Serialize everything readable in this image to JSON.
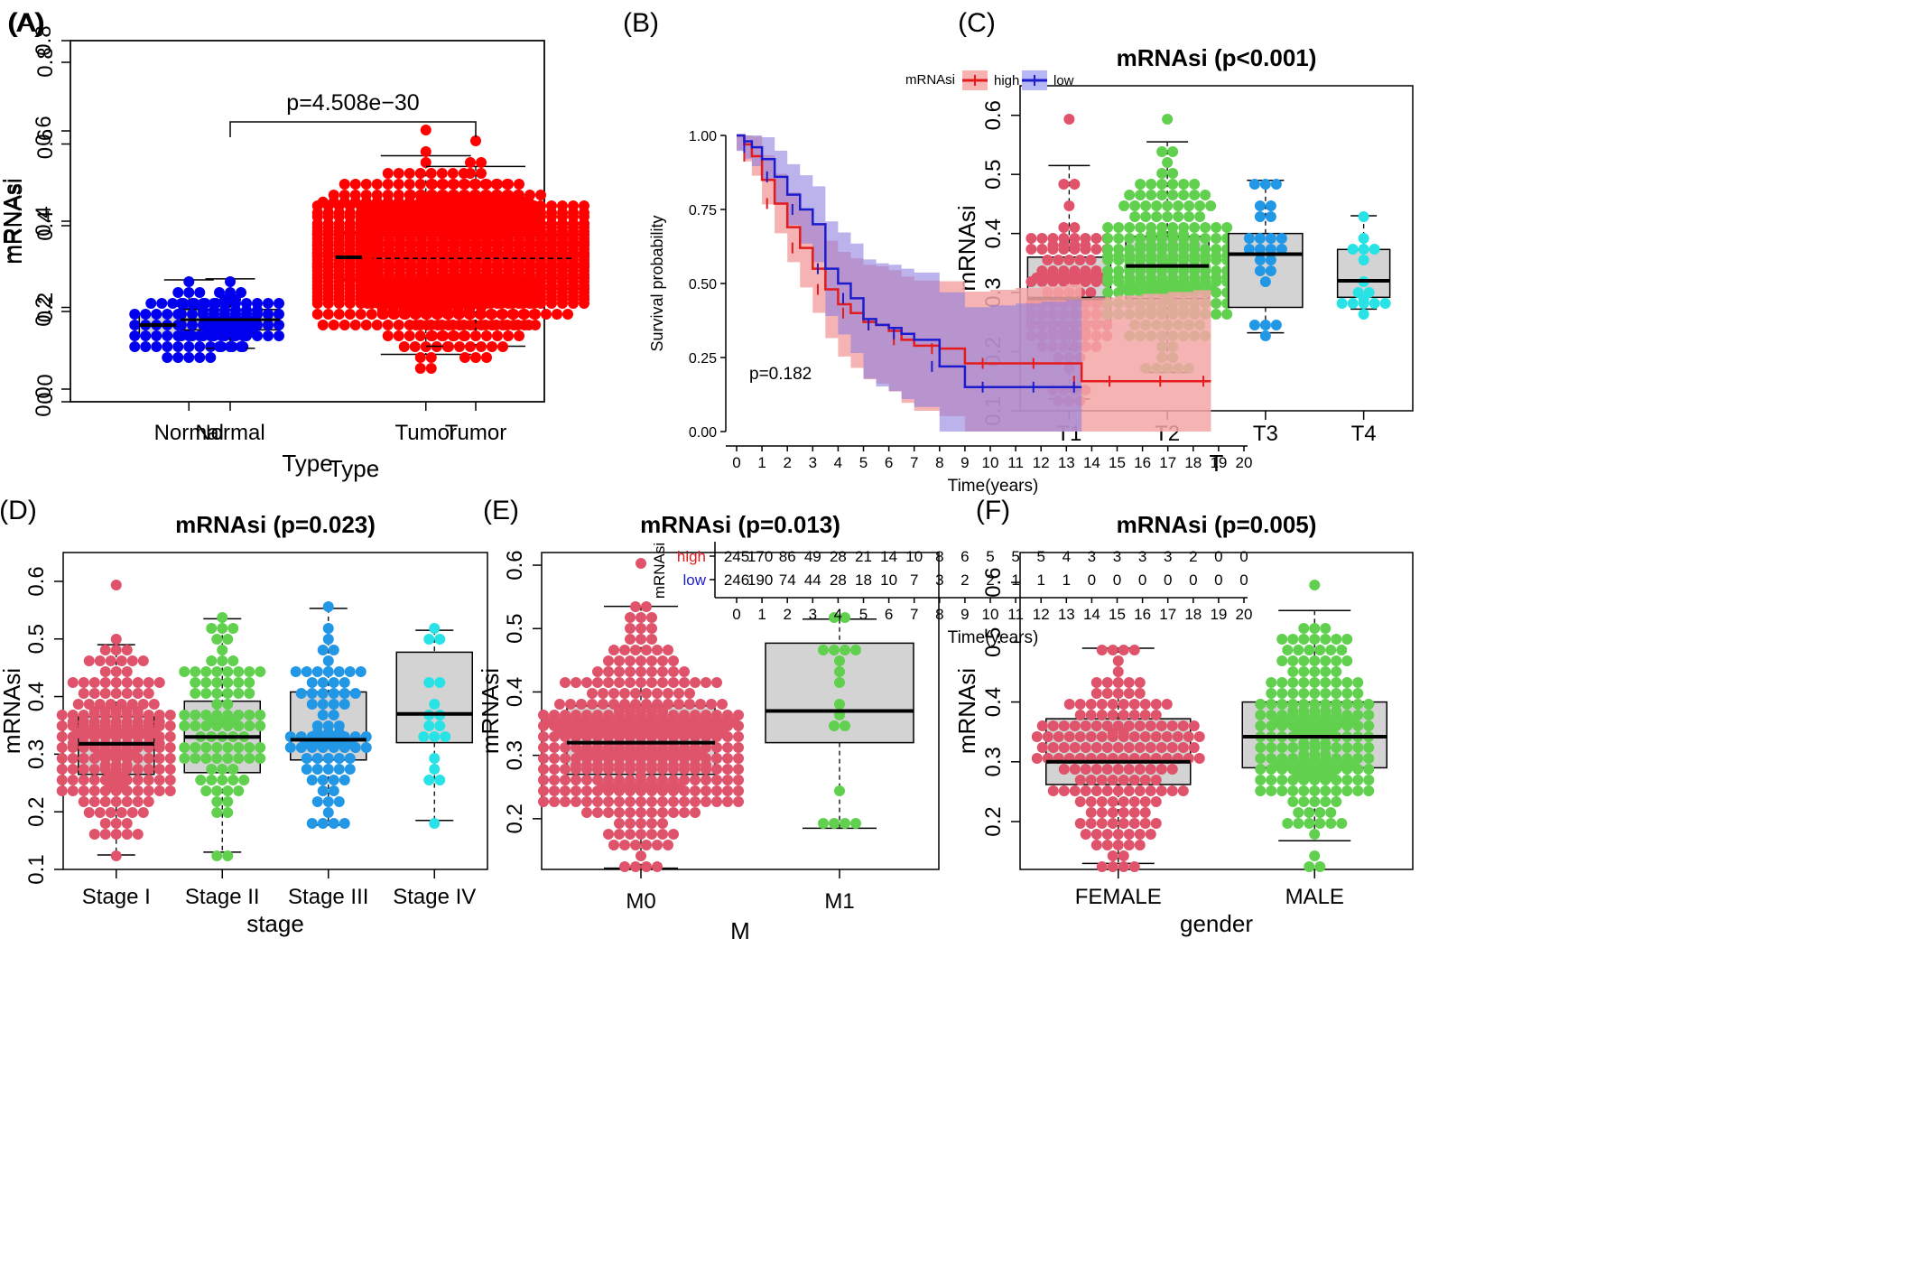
{
  "colors": {
    "normal_blue": "#0000ee",
    "tumor_red": "#ff0000",
    "pink": "#df536b",
    "green": "#61d04f",
    "blue": "#2297e6",
    "cyan": "#28e2e5",
    "box_fill": "#d3d3d3",
    "km_high": "#e41a1c",
    "km_low": "#1c1ccf"
  },
  "chart_data": [
    {
      "panel": "(A)",
      "type": "box-beeswarm",
      "title": "",
      "xlabel": "Type",
      "ylabel": "mRNAsi",
      "ylim": [
        0,
        0.8
      ],
      "yticks": [
        "0.0",
        "0.2",
        "0.4",
        "0.6",
        "0.8"
      ],
      "annotation": "p=4.508e−30",
      "groups": [
        {
          "name": "Normal",
          "color": "#0000ee",
          "n": 65,
          "whisker_low": 0.1,
          "q1": 0.145,
          "median": 0.17,
          "q3": 0.195,
          "whisker_high": 0.27,
          "min": 0.095,
          "max": 0.27
        },
        {
          "name": "Tumor",
          "color": "#ff0000",
          "n": 900,
          "whisker_low": 0.105,
          "q1": 0.27,
          "median": 0.32,
          "q3": 0.375,
          "whisker_high": 0.545,
          "min": 0.08,
          "max": 0.6
        }
      ]
    },
    {
      "panel": "(B)",
      "type": "line",
      "subtype": "kaplan-meier",
      "legend_title": "mRNAsi",
      "legend": [
        "high",
        "low"
      ],
      "ylabel": "Survival probability",
      "xlabel": "Time(years)",
      "xlim": [
        0,
        20
      ],
      "ylim": [
        0,
        1
      ],
      "xticks": [
        "0",
        "1",
        "2",
        "3",
        "4",
        "5",
        "6",
        "7",
        "8",
        "9",
        "10",
        "11",
        "12",
        "13",
        "14",
        "15",
        "16",
        "17",
        "18",
        "19",
        "20"
      ],
      "yticks": [
        "0.00",
        "0.25",
        "0.50",
        "0.75",
        "1.00"
      ],
      "pvalue": "p=0.182",
      "series": [
        {
          "name": "high",
          "color": "#e41a1c",
          "x": [
            0,
            0.3,
            0.6,
            1,
            1.5,
            2,
            2.5,
            3,
            3.5,
            4,
            4.5,
            5,
            5.5,
            6,
            6.5,
            7,
            8,
            9,
            10,
            11,
            12,
            13,
            13.6,
            14,
            15,
            16,
            17,
            18,
            18.7
          ],
          "y": [
            1.0,
            0.97,
            0.93,
            0.85,
            0.77,
            0.69,
            0.62,
            0.55,
            0.48,
            0.43,
            0.4,
            0.37,
            0.36,
            0.34,
            0.31,
            0.29,
            0.28,
            0.23,
            0.23,
            0.23,
            0.23,
            0.23,
            0.17,
            0.17,
            0.17,
            0.17,
            0.17,
            0.17,
            0.17
          ]
        },
        {
          "name": "low",
          "color": "#1c1ccf",
          "x": [
            0,
            0.3,
            0.6,
            1,
            1.5,
            2,
            2.5,
            3,
            3.5,
            4,
            4.5,
            5,
            5.5,
            6,
            6.5,
            7,
            8,
            9,
            10,
            11,
            12,
            13,
            13.6
          ],
          "y": [
            1.0,
            0.98,
            0.96,
            0.92,
            0.86,
            0.8,
            0.75,
            0.7,
            0.55,
            0.5,
            0.45,
            0.38,
            0.36,
            0.35,
            0.33,
            0.31,
            0.22,
            0.15,
            0.15,
            0.15,
            0.15,
            0.15,
            0.15
          ]
        }
      ],
      "risk_table": {
        "title": "mRNAsi",
        "xlabel": "Time(years)",
        "rows": [
          {
            "name": "high",
            "values": [
              "245",
              "170",
              "86",
              "49",
              "28",
              "21",
              "14",
              "10",
              "8",
              "6",
              "5",
              "5",
              "5",
              "4",
              "3",
              "3",
              "3",
              "3",
              "2",
              "0",
              "0"
            ]
          },
          {
            "name": "low",
            "values": [
              "246",
              "190",
              "74",
              "44",
              "28",
              "18",
              "10",
              "7",
              "3",
              "2",
              "2",
              "1",
              "1",
              "1",
              "0",
              "0",
              "0",
              "0",
              "0",
              "0",
              "0"
            ]
          }
        ]
      }
    },
    {
      "panel": "(C)",
      "type": "box-beeswarm",
      "title": "mRNAsi (p<0.001)",
      "xlabel": "T",
      "ylabel": "mRNAsi",
      "ylim": [
        0.1,
        0.65
      ],
      "yticks": [
        "0.1",
        "0.2",
        "0.3",
        "0.4",
        "0.5",
        "0.6"
      ],
      "groups": [
        {
          "name": "T1",
          "color": "#df536b",
          "n": 110,
          "whisker_low": 0.12,
          "q1": 0.25,
          "median": 0.29,
          "q3": 0.36,
          "whisker_high": 0.515,
          "min": 0.12,
          "max": 0.595
        },
        {
          "name": "T2",
          "color": "#61d04f",
          "n": 230,
          "whisker_low": 0.165,
          "q1": 0.29,
          "median": 0.345,
          "q3": 0.395,
          "whisker_high": 0.555,
          "min": 0.165,
          "max": 0.6
        },
        {
          "name": "T3",
          "color": "#2297e6",
          "n": 24,
          "whisker_low": 0.232,
          "q1": 0.275,
          "median": 0.365,
          "q3": 0.4,
          "whisker_high": 0.49,
          "min": 0.232,
          "max": 0.49
        },
        {
          "name": "T4",
          "color": "#28e2e5",
          "n": 16,
          "whisker_low": 0.272,
          "q1": 0.292,
          "median": 0.32,
          "q3": 0.373,
          "whisker_high": 0.43,
          "min": 0.272,
          "max": 0.43
        }
      ]
    },
    {
      "panel": "(D)",
      "type": "box-beeswarm",
      "title": "mRNAsi (p=0.023)",
      "xlabel": "stage",
      "ylabel": "mRNAsi",
      "ylim": [
        0.1,
        0.65
      ],
      "yticks": [
        "0.1",
        "0.2",
        "0.3",
        "0.4",
        "0.5",
        "0.6"
      ],
      "groups": [
        {
          "name": "Stage I",
          "color": "#df536b",
          "n": 190,
          "whisker_low": 0.125,
          "q1": 0.265,
          "median": 0.318,
          "q3": 0.365,
          "whisker_high": 0.49,
          "min": 0.125,
          "max": 0.6
        },
        {
          "name": "Stage II",
          "color": "#61d04f",
          "n": 90,
          "whisker_low": 0.13,
          "q1": 0.268,
          "median": 0.33,
          "q3": 0.392,
          "whisker_high": 0.535,
          "min": 0.13,
          "max": 0.535
        },
        {
          "name": "Stage III",
          "color": "#2297e6",
          "n": 80,
          "whisker_low": 0.177,
          "q1": 0.29,
          "median": 0.325,
          "q3": 0.408,
          "whisker_high": 0.553,
          "min": 0.177,
          "max": 0.553
        },
        {
          "name": "Stage IV",
          "color": "#28e2e5",
          "n": 18,
          "whisker_low": 0.185,
          "q1": 0.32,
          "median": 0.37,
          "q3": 0.477,
          "whisker_high": 0.515,
          "min": 0.185,
          "max": 0.515
        }
      ]
    },
    {
      "panel": "(E)",
      "type": "box-beeswarm",
      "title": "mRNAsi (p=0.013)",
      "xlabel": "M",
      "ylabel": "mRNAsi",
      "ylim": [
        0.12,
        0.62
      ],
      "yticks": [
        "0.2",
        "0.3",
        "0.4",
        "0.5",
        "0.6"
      ],
      "groups": [
        {
          "name": "M0",
          "color": "#df536b",
          "n": 360,
          "whisker_low": 0.122,
          "q1": 0.27,
          "median": 0.32,
          "q3": 0.378,
          "whisker_high": 0.535,
          "min": 0.122,
          "max": 0.6
        },
        {
          "name": "M1",
          "color": "#61d04f",
          "n": 18,
          "whisker_low": 0.185,
          "q1": 0.32,
          "median": 0.37,
          "q3": 0.477,
          "whisker_high": 0.515,
          "min": 0.185,
          "max": 0.515
        }
      ]
    },
    {
      "panel": "(F)",
      "type": "box-beeswarm",
      "title": "mRNAsi (p=0.005)",
      "xlabel": "gender",
      "ylabel": "mRNAsi",
      "ylim": [
        0.12,
        0.65
      ],
      "yticks": [
        "0.2",
        "0.3",
        "0.4",
        "0.5",
        "0.6"
      ],
      "groups": [
        {
          "name": "FEMALE",
          "color": "#df536b",
          "n": 170,
          "whisker_low": 0.13,
          "q1": 0.262,
          "median": 0.3,
          "q3": 0.372,
          "whisker_high": 0.49,
          "min": 0.13,
          "max": 0.49
        },
        {
          "name": "MALE",
          "color": "#61d04f",
          "n": 200,
          "whisker_low": 0.168,
          "q1": 0.29,
          "median": 0.342,
          "q3": 0.4,
          "whisker_high": 0.553,
          "min": 0.125,
          "max": 0.6
        }
      ]
    }
  ]
}
